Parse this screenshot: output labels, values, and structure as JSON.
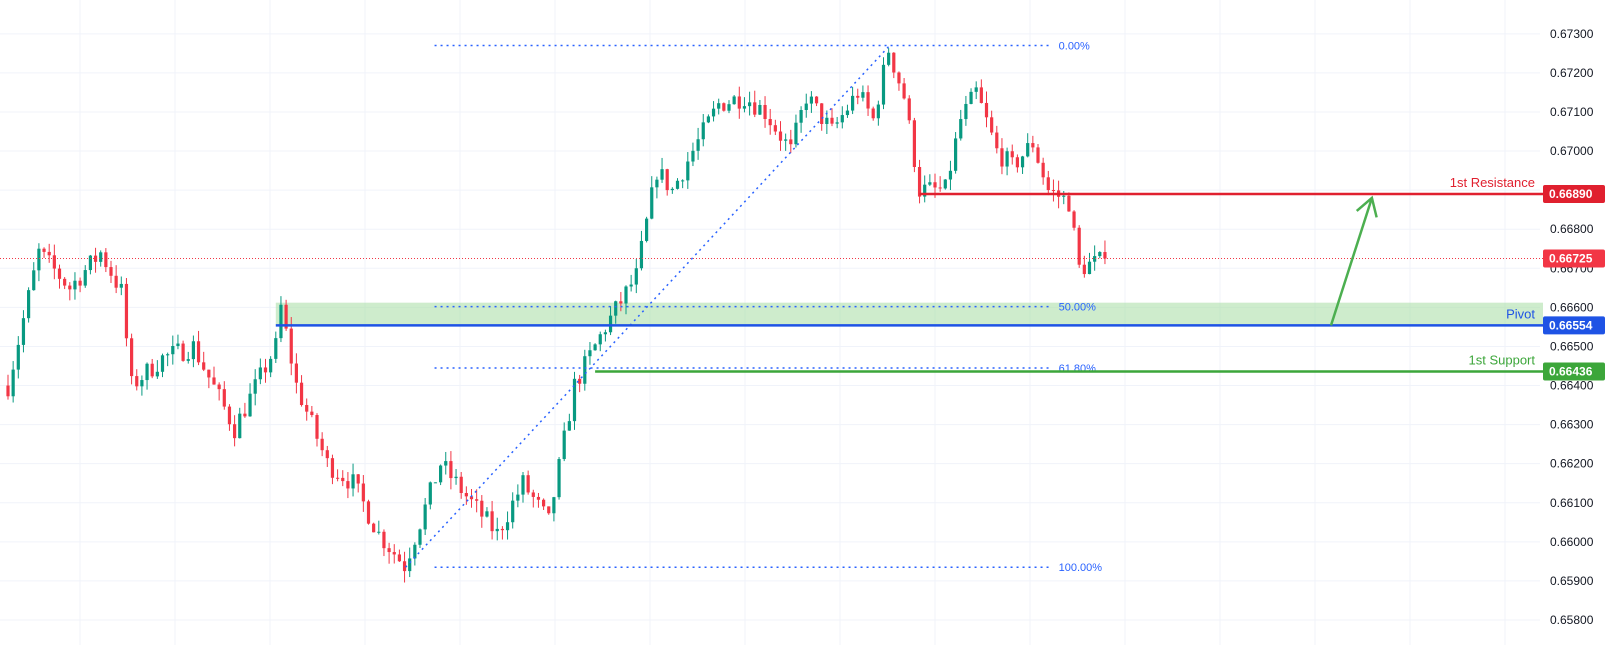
{
  "chart_data": {
    "type": "candlestick",
    "title": "",
    "xlabel": "",
    "ylabel": "",
    "ylim": [
      0.658,
      0.6732
    ],
    "grid": true,
    "y_ticks": [
      "0.67300",
      "0.67200",
      "0.67100",
      "0.67000",
      "0.66900",
      "0.66800",
      "0.66700",
      "0.66600",
      "0.66500",
      "0.66400",
      "0.66300",
      "0.66200",
      "0.66100",
      "0.66000",
      "0.65900",
      "0.65800"
    ],
    "last_price": {
      "value": 0.66725,
      "label": "0.66725",
      "color": "#f23645"
    },
    "levels": [
      {
        "name": "1st Resistance",
        "value": 0.6689,
        "label": "0.66890",
        "color": "#e0202f",
        "start_bar": 177
      },
      {
        "name": "Pivot",
        "value": 0.66554,
        "label": "0.66554",
        "color": "#1e53e5",
        "start_bar": 52
      },
      {
        "name": "1st Support",
        "value": 0.66436,
        "label": "0.66436",
        "color": "#3ca63a",
        "start_bar": 114
      }
    ],
    "pivot_zone": {
      "from": 0.66554,
      "to": 0.66612,
      "color": "#a5dca2"
    },
    "fibonacci": {
      "anchor_high": 0.6727,
      "anchor_low": 0.65935,
      "start_bar": 77,
      "end_bar": 171,
      "levels": [
        {
          "ratio": "0.00%",
          "value": 0.6727
        },
        {
          "ratio": "50.00%",
          "value": 0.66602
        },
        {
          "ratio": "61.80%",
          "value": 0.66445
        },
        {
          "ratio": "100.00%",
          "value": 0.65935
        }
      ],
      "color": "#2962ff"
    },
    "projection_arrow": {
      "from_bar": 220,
      "from_value": 0.66554,
      "to_bar": 226,
      "to_value": 0.6688,
      "color": "#4caf50"
    },
    "up_color": "#089981",
    "down_color": "#f23645",
    "waypoints": [
      [
        0,
        0.664
      ],
      [
        6,
        0.6674
      ],
      [
        12,
        0.6665
      ],
      [
        18,
        0.6674
      ],
      [
        22,
        0.6664
      ],
      [
        24,
        0.664
      ],
      [
        30,
        0.6647
      ],
      [
        36,
        0.665
      ],
      [
        44,
        0.6629
      ],
      [
        52,
        0.665
      ],
      [
        53,
        0.666
      ],
      [
        56,
        0.664
      ],
      [
        62,
        0.662
      ],
      [
        67,
        0.6615
      ],
      [
        72,
        0.6602
      ],
      [
        77,
        0.6594
      ],
      [
        80,
        0.6605
      ],
      [
        84,
        0.662
      ],
      [
        90,
        0.661
      ],
      [
        95,
        0.6602
      ],
      [
        100,
        0.6615
      ],
      [
        105,
        0.6605
      ],
      [
        110,
        0.664
      ],
      [
        116,
        0.6655
      ],
      [
        122,
        0.6668
      ],
      [
        126,
        0.6695
      ],
      [
        129,
        0.669
      ],
      [
        133,
        0.67
      ],
      [
        138,
        0.6712
      ],
      [
        143,
        0.6714
      ],
      [
        147,
        0.671
      ],
      [
        152,
        0.67
      ],
      [
        155,
        0.6714
      ],
      [
        160,
        0.6705
      ],
      [
        165,
        0.6715
      ],
      [
        168,
        0.6708
      ],
      [
        171,
        0.6726
      ],
      [
        174,
        0.6714
      ],
      [
        177,
        0.669
      ],
      [
        182,
        0.669
      ],
      [
        185,
        0.6708
      ],
      [
        188,
        0.6715
      ],
      [
        192,
        0.67
      ],
      [
        195,
        0.6696
      ],
      [
        199,
        0.6702
      ],
      [
        202,
        0.669
      ],
      [
        206,
        0.6687
      ],
      [
        208,
        0.667
      ],
      [
        210,
        0.6671
      ],
      [
        213,
        0.6672
      ]
    ]
  }
}
